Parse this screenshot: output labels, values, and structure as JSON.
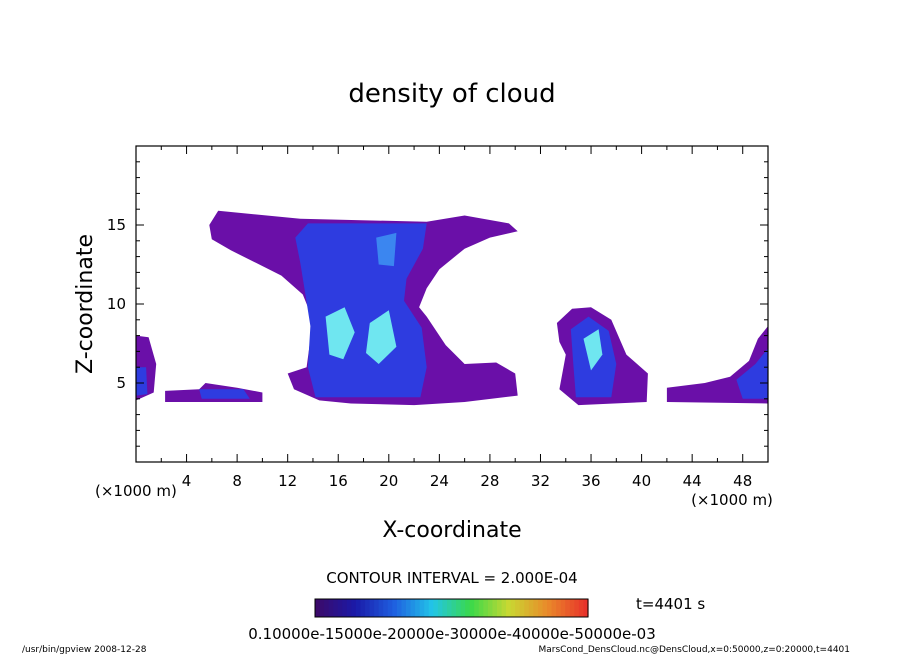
{
  "chart_data": {
    "type": "heatmap",
    "title": "density of cloud",
    "xlabel": "X-coordinate",
    "ylabel": "Z-coordinate",
    "x_unit_left": "(×1000 m)",
    "x_unit_right": "(×1000 m)",
    "xlim": [
      0,
      50
    ],
    "ylim": [
      0,
      20
    ],
    "x_ticks": [
      "4",
      "8",
      "12",
      "16",
      "20",
      "24",
      "28",
      "32",
      "36",
      "40",
      "44",
      "48"
    ],
    "y_ticks": [
      "5",
      "10",
      "15"
    ],
    "contour_interval_text": "CONTOUR INTERVAL = 2.000E-04",
    "time_label": "t=4401 s",
    "colorbar": {
      "min": 0.0001,
      "max": 0.0006,
      "label_text": "0.10000e-15000e-20000e-30000e-40000e-50000e-03",
      "colors": [
        "#3b0a6b",
        "#1a1aa8",
        "#1f5fe0",
        "#22c5e8",
        "#3ad94a",
        "#c9d832",
        "#e98a2a",
        "#e8332a"
      ]
    },
    "footer_left": "/usr/bin/gpview   2008-12-28",
    "footer_right": "MarsCond_DensCloud.nc@DensCloud,x=0:50000,z=0:20000,t=4401",
    "palette": {
      "low": "#6a0fa8",
      "mid": "#2e3ce0",
      "high": "#6fe6f0"
    }
  }
}
